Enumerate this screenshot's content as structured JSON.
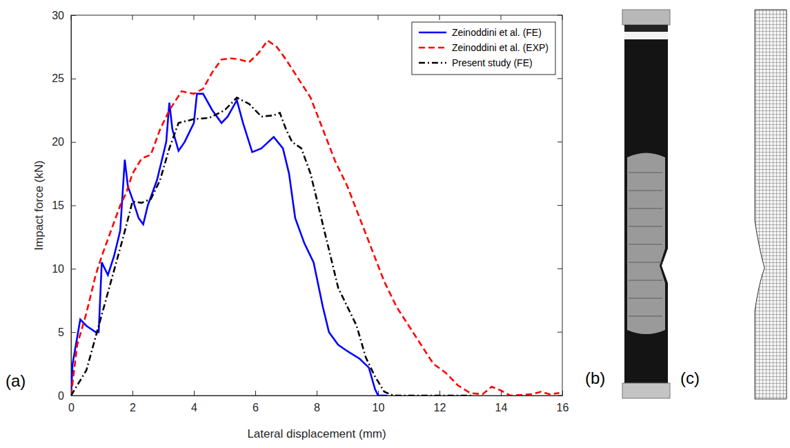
{
  "chart_data": {
    "type": "line",
    "x_label": "Lateral displacement (mm)",
    "y_label": "Impact force (kN)",
    "annotations": [
      "(a)",
      "(b)",
      "(c)"
    ],
    "xlim": [
      0,
      16
    ],
    "xticks": [
      0,
      2,
      4,
      6,
      8,
      10,
      12,
      14,
      16
    ],
    "ylim": [
      0,
      30
    ],
    "yticks": [
      0,
      5,
      10,
      15,
      20,
      25,
      30
    ],
    "grid": false,
    "legend": "upper right",
    "series": [
      {
        "name": "Zeinoddini et al. (FE)",
        "color": "#0000ff",
        "line_style": "solid",
        "x": [
          0,
          0.05,
          0.3,
          0.5,
          0.8,
          0.9,
          1.0,
          1.2,
          1.4,
          1.6,
          1.75,
          1.85,
          2.0,
          2.2,
          2.35,
          2.5,
          2.8,
          3.1,
          3.2,
          3.3,
          3.5,
          3.7,
          4.0,
          4.1,
          4.3,
          4.6,
          4.9,
          5.1,
          5.4,
          5.6,
          5.9,
          6.2,
          6.6,
          6.9,
          7.1,
          7.3,
          7.6,
          7.9,
          8.2,
          8.4,
          8.7,
          9.0,
          9.4,
          9.7,
          9.9,
          10.0,
          10.3
        ],
        "values": [
          0,
          2.5,
          6,
          5.5,
          5,
          5,
          10.5,
          9.5,
          11,
          13,
          18.6,
          16.5,
          15.5,
          14,
          13.5,
          15,
          17,
          20,
          23.1,
          21,
          19.3,
          20,
          21.5,
          23.8,
          23.8,
          22.5,
          21.5,
          22,
          23.3,
          21.5,
          19.2,
          19.5,
          20.4,
          19.5,
          17.5,
          14,
          12,
          10.5,
          7,
          5,
          4,
          3.5,
          2.9,
          2.2,
          0.5,
          0,
          0
        ]
      },
      {
        "name": "Zeinoddini et al. (EXP)",
        "color": "#ff0000",
        "line_style": "dashed",
        "x": [
          0,
          0.2,
          0.5,
          0.8,
          1.0,
          1.3,
          1.6,
          1.8,
          2.0,
          2.3,
          2.6,
          2.9,
          3.2,
          3.6,
          4.0,
          4.3,
          4.6,
          4.9,
          5.2,
          5.5,
          5.8,
          6.1,
          6.4,
          6.7,
          7.0,
          7.4,
          7.8,
          8.2,
          8.6,
          9.0,
          9.4,
          9.8,
          10.2,
          10.6,
          11.0,
          11.4,
          11.8,
          12.2,
          12.6,
          13.0,
          13.4,
          13.7,
          14.0,
          14.3,
          15.0,
          15.3,
          15.6,
          15.9
        ],
        "values": [
          0,
          4,
          6.5,
          9.5,
          11,
          13,
          15,
          16,
          17.5,
          18.7,
          19,
          21,
          22.5,
          24,
          23.8,
          24.2,
          25.5,
          26.5,
          26.6,
          26.5,
          26.3,
          27,
          28,
          27.5,
          26.5,
          25,
          23.5,
          21,
          18.5,
          16.5,
          14,
          11.5,
          9,
          7,
          5.5,
          4,
          2.5,
          1.8,
          0.8,
          0.2,
          0.1,
          0.7,
          0.4,
          0,
          0.1,
          0.3,
          0.1,
          0.2
        ]
      },
      {
        "name": "Present study (FE)",
        "color": "#000000",
        "line_style": "dashdot",
        "x": [
          0,
          0.5,
          0.9,
          1.3,
          1.7,
          2.0,
          2.3,
          2.6,
          2.9,
          3.2,
          3.5,
          4.0,
          4.5,
          5.0,
          5.4,
          5.8,
          6.2,
          6.6,
          6.8,
          7.0,
          7.2,
          7.5,
          7.8,
          8.1,
          8.4,
          8.7,
          9.0,
          9.3,
          9.6,
          9.9,
          10.2,
          10.5,
          13.1
        ],
        "values": [
          0,
          2,
          5.5,
          9,
          12.5,
          15.3,
          15.2,
          15.5,
          17,
          19.5,
          21.5,
          21.8,
          21.9,
          22.5,
          23.5,
          23,
          22,
          22.1,
          22.3,
          21,
          20,
          19.5,
          17.5,
          14.5,
          11.5,
          8.5,
          7,
          5.5,
          3,
          1.5,
          0.3,
          0,
          0
        ]
      }
    ]
  }
}
